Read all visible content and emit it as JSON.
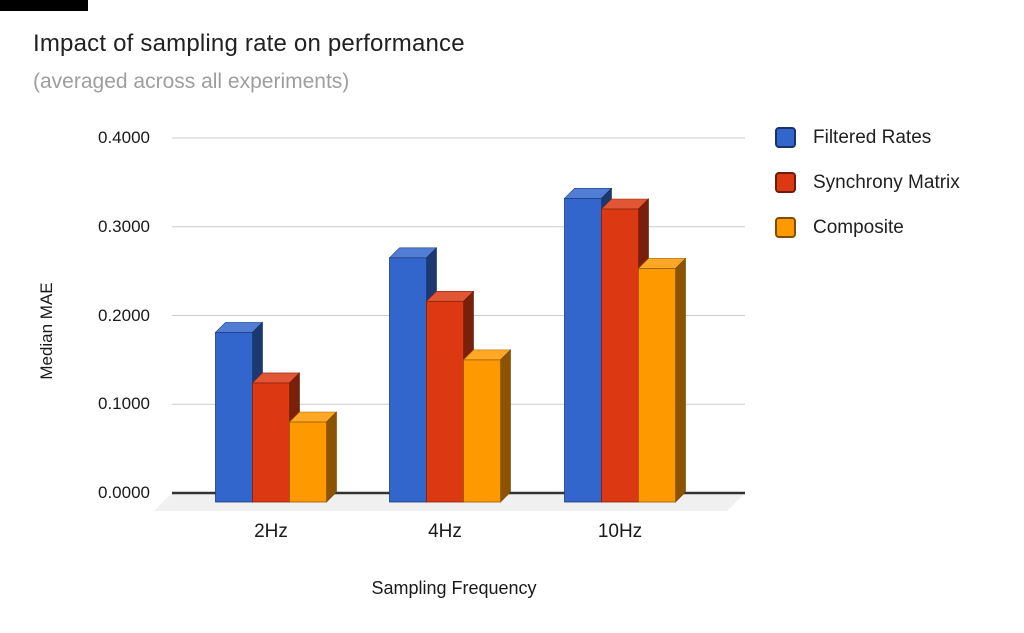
{
  "decorations": {
    "top_left_bar_color": "#000000"
  },
  "chart_data": {
    "type": "bar",
    "style": "3d-grouped",
    "title": "Impact of sampling rate on performance",
    "subtitle": "(averaged across all experiments)",
    "xlabel": "Sampling Frequency",
    "ylabel": "Median MAE",
    "categories": [
      "2Hz",
      "4Hz",
      "10Hz"
    ],
    "series": [
      {
        "name": "Filtered Rates",
        "color": "#3366cc",
        "values": [
          0.181,
          0.265,
          0.332
        ]
      },
      {
        "name": "Synchrony Matrix",
        "color": "#dc3912",
        "values": [
          0.124,
          0.216,
          0.32
        ]
      },
      {
        "name": "Composite",
        "color": "#ff9900",
        "values": [
          0.08,
          0.15,
          0.253
        ]
      }
    ],
    "ylim": [
      0.0,
      0.4
    ],
    "yticks": [
      "0.0000",
      "0.1000",
      "0.2000",
      "0.3000",
      "0.4000"
    ],
    "grid": true,
    "gridline_color": "#cccccc",
    "axis_line_color": "#333333",
    "floor_color": "#f0f0f0",
    "legend_position": "right"
  }
}
